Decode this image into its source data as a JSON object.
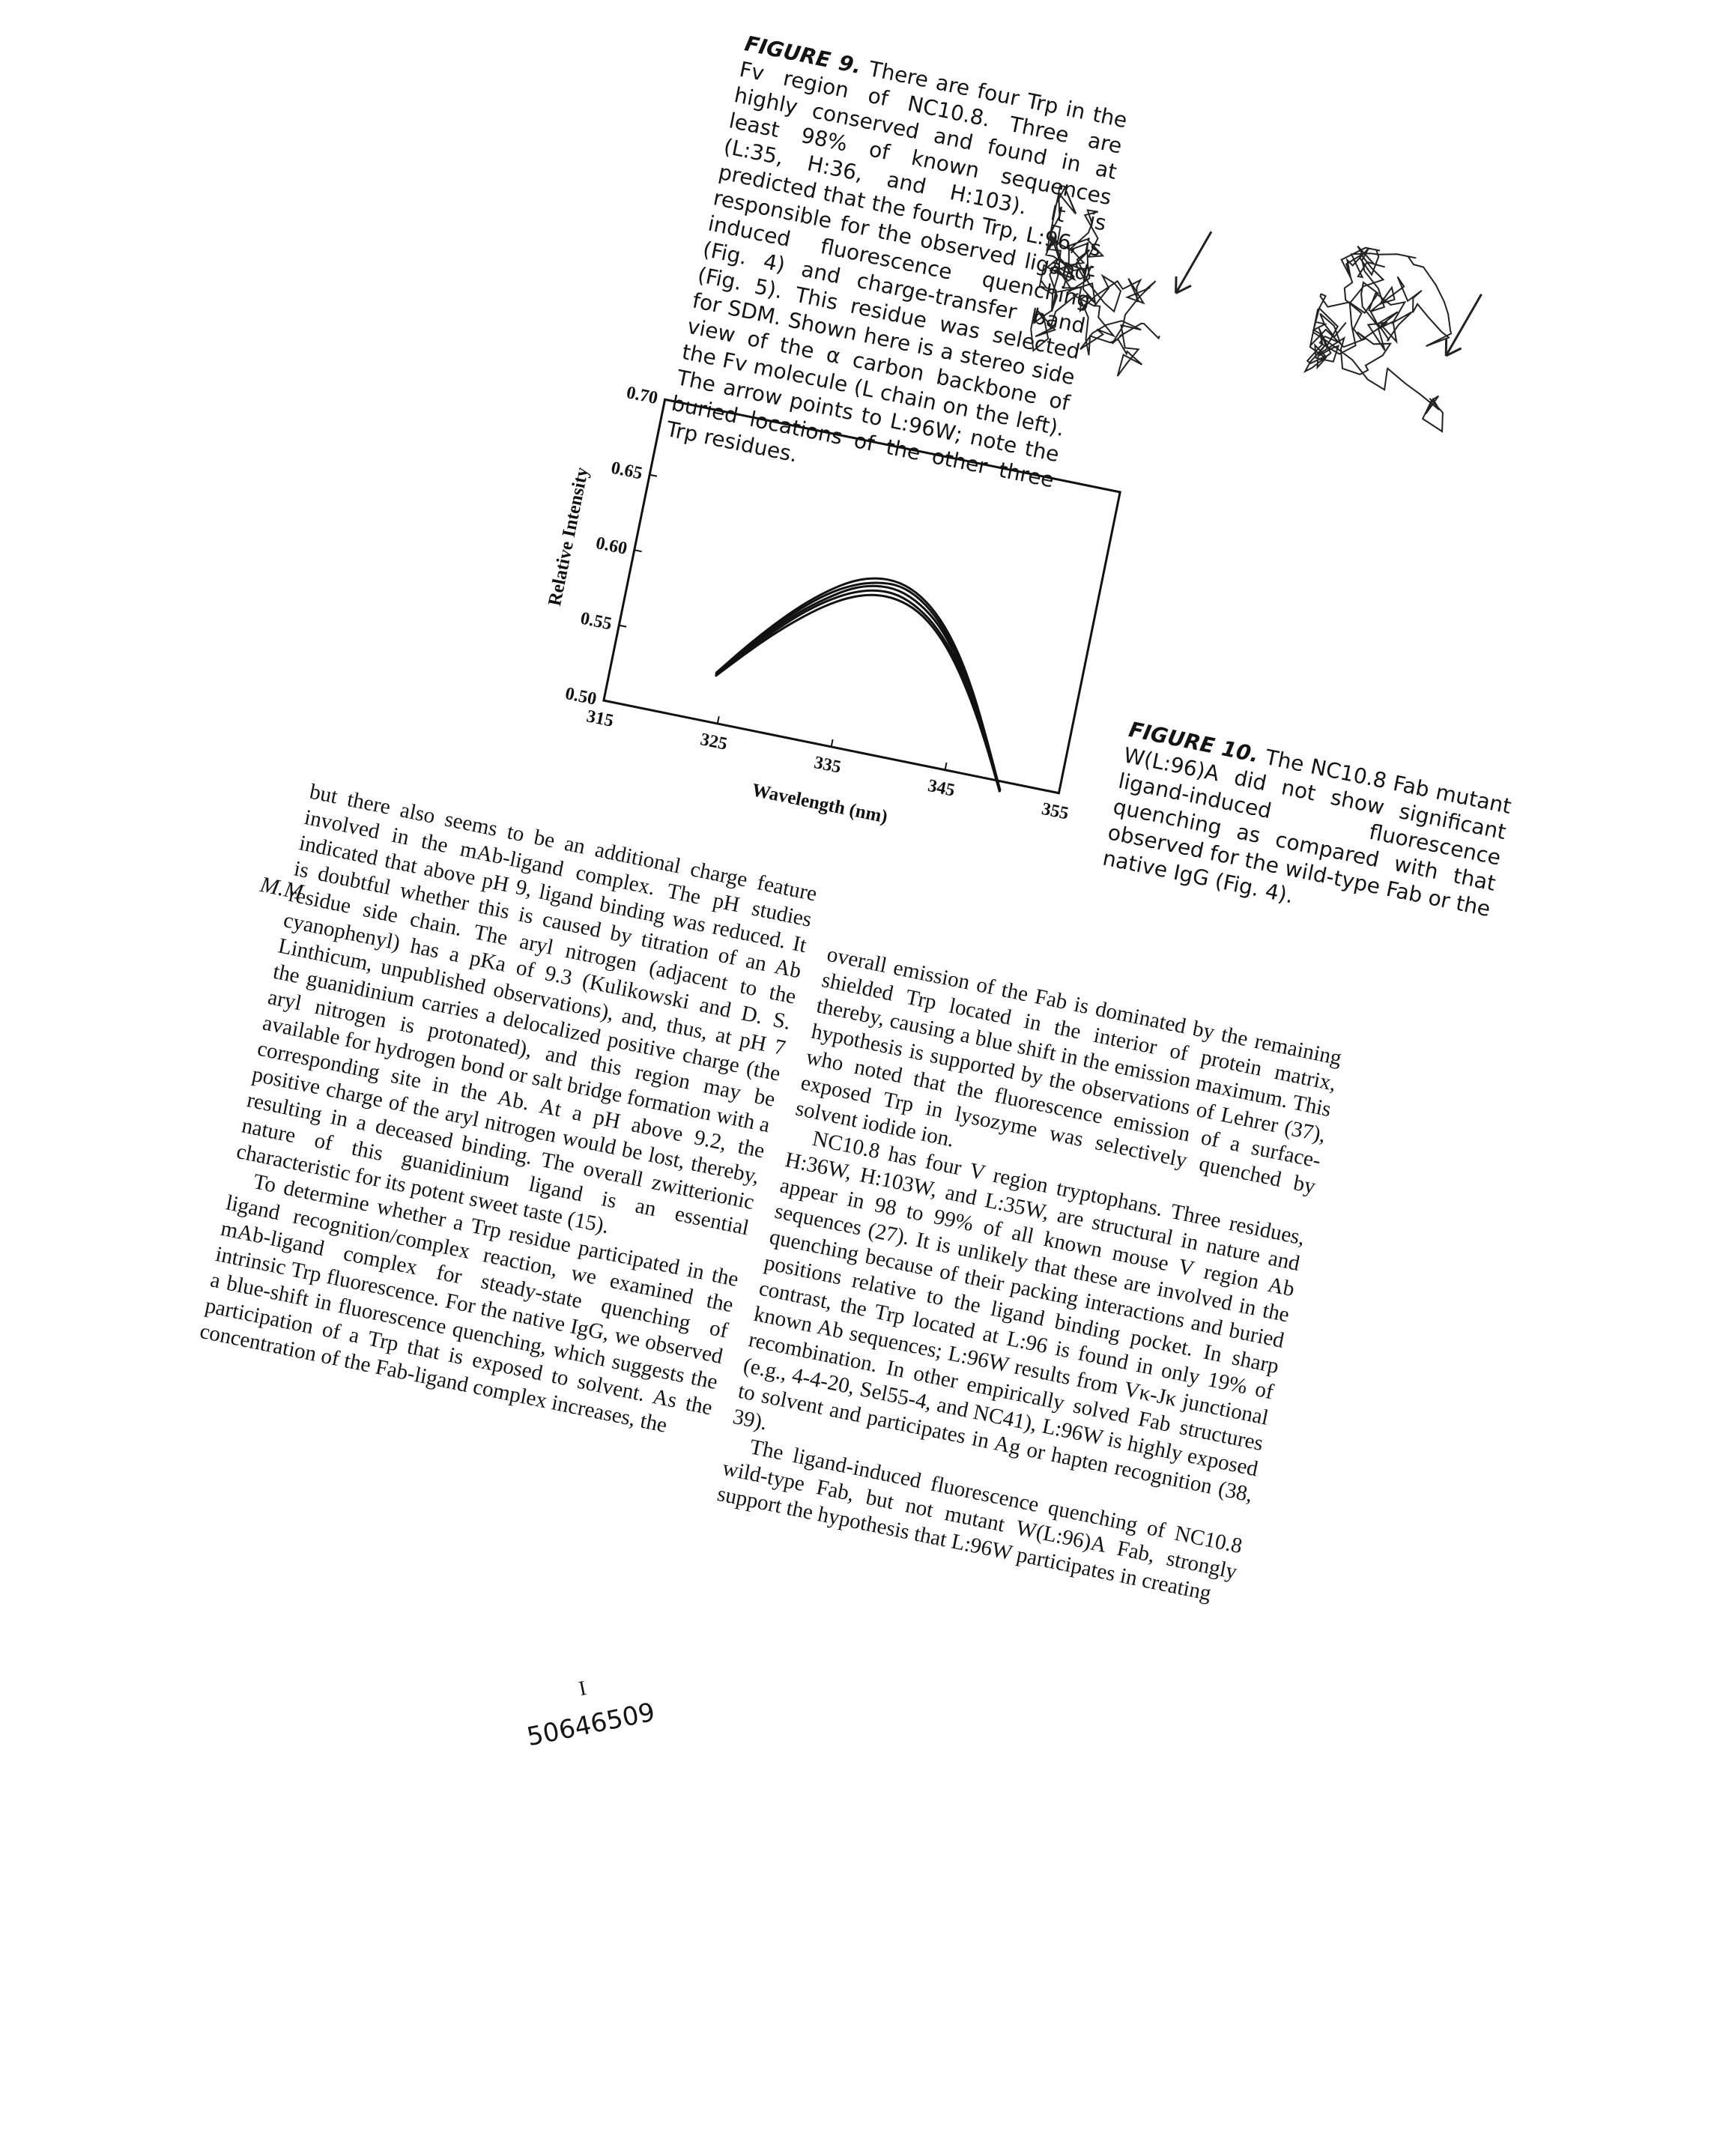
{
  "figure9": {
    "label": "FIGURE 9.",
    "text": "There are four Trp in the Fv region of NC10.8. Three are highly conserved and found in at least 98% of known sequences (L:35, H:36, and H:103). It is predicted that the fourth Trp, L:96, is responsible for the observed ligand-induced fluorescence quenching (Fig. 4) and charge-transfer band (Fig. 5). This residue was selected for SDM. Shown here is a stereo side view of the α carbon backbone of the Fv molecule (L chain on the left). The arrow points to L:96W; note the buried locations of the other three Trp residues."
  },
  "figure10": {
    "label": "FIGURE 10.",
    "text": "The NC10.8 Fab mutant W(L:96)A did not show significant ligand-induced fluorescence quenching as compared with that observed for the wild-type Fab or the native IgG (Fig. 4)."
  },
  "chart_data": {
    "type": "line",
    "xlabel": "Wavelength (nm)",
    "ylabel": "Relative Intensity",
    "xlim": [
      315,
      355
    ],
    "ylim": [
      0.5,
      0.7
    ],
    "x_ticks": [
      "315",
      "325",
      "335",
      "345",
      "355"
    ],
    "y_ticks": [
      "0.50",
      "0.55",
      "0.60",
      "0.65",
      "0.70"
    ],
    "x": [
      324,
      326,
      328,
      330,
      332,
      334,
      336,
      338,
      340,
      342,
      344,
      346,
      348,
      350
    ],
    "series": [
      {
        "values": [
          0.53,
          0.547,
          0.563,
          0.577,
          0.589,
          0.598,
          0.603,
          0.603,
          0.598,
          0.587,
          0.57,
          0.548,
          0.522,
          0.493
        ]
      },
      {
        "values": [
          0.531,
          0.549,
          0.565,
          0.58,
          0.592,
          0.601,
          0.606,
          0.606,
          0.6,
          0.589,
          0.572,
          0.549,
          0.523,
          0.493
        ]
      },
      {
        "values": [
          0.531,
          0.55,
          0.567,
          0.582,
          0.594,
          0.604,
          0.609,
          0.609,
          0.603,
          0.592,
          0.574,
          0.551,
          0.524,
          0.494
        ]
      },
      {
        "values": [
          0.532,
          0.551,
          0.569,
          0.584,
          0.597,
          0.606,
          0.611,
          0.612,
          0.606,
          0.594,
          0.576,
          0.552,
          0.524,
          0.494
        ]
      },
      {
        "values": [
          0.532,
          0.552,
          0.57,
          0.586,
          0.599,
          0.609,
          0.614,
          0.614,
          0.608,
          0.596,
          0.578,
          0.554,
          0.525,
          0.494
        ]
      }
    ]
  },
  "left_column": [
    "but there also seems to be an additional charge feature involved in the mAb-ligand complex. The pH studies indicated that above pH 9, ligand binding was reduced. It is doubtful whether this is caused by titration of an Ab residue side chain. The aryl nitrogen (adjacent to the cyanophenyl) has a pKa of 9.3 (Kulikowski and D. S. Linthicum, unpublished observations), and, thus, at pH 7 the guanidinium carries a delocalized positive charge (the aryl nitrogen is protonated), and this region may be available for hydrogen bond or salt bridge formation with a corresponding site in the Ab. At a pH above 9.2, the positive charge of the aryl nitrogen would be lost, thereby, resulting in a deceased binding. The overall zwitterionic nature of this guanidinium ligand is an essential characteristic for its potent sweet taste (15).",
    "To determine whether a Trp residue participated in the ligand recognition/complex reaction, we examined the mAb-ligand complex for steady-state quenching of intrinsic Trp fluorescence. For the native IgG, we observed a blue-shift in fluorescence quenching, which suggests the participation of a Trp that is exposed to solvent. As the concentration of the Fab-ligand complex increases, the"
  ],
  "right_column": [
    "overall emission of the Fab is dominated by the remaining shielded Trp located in the interior of protein matrix, thereby, causing a blue shift in the emission maximum. This hypothesis is supported by the observations of Lehrer (37), who noted that the fluorescence emission of a surface-exposed Trp in lysozyme was selectively quenched by solvent iodide ion.",
    "NC10.8 has four V region tryptophans. Three residues, H:36W, H:103W, and L:35W, are structural in nature and appear in 98 to 99% of all known mouse V region Ab sequences (27). It is unlikely that these are involved in the quenching because of their packing interactions and buried positions relative to the ligand binding pocket. In sharp contrast, the Trp located at L:96 is found in only 19% of known Ab sequences; L:96W results from Vκ-Jκ junctional recombination. In other empirically solved Fab structures (e.g., 4-4-20, Sel55-4, and NC41), L:96W is highly exposed to solvent and participates in Ag or hapten recognition (38, 39).",
    "The ligand-induced fluorescence quenching of NC10.8 wild-type Fab, but not mutant W(L:96)A Fab, strongly support the hypothesis that L:96W participates in creating"
  ],
  "handwritten_note": "M.M",
  "footer_mark": "I",
  "footer_number": "50646509"
}
